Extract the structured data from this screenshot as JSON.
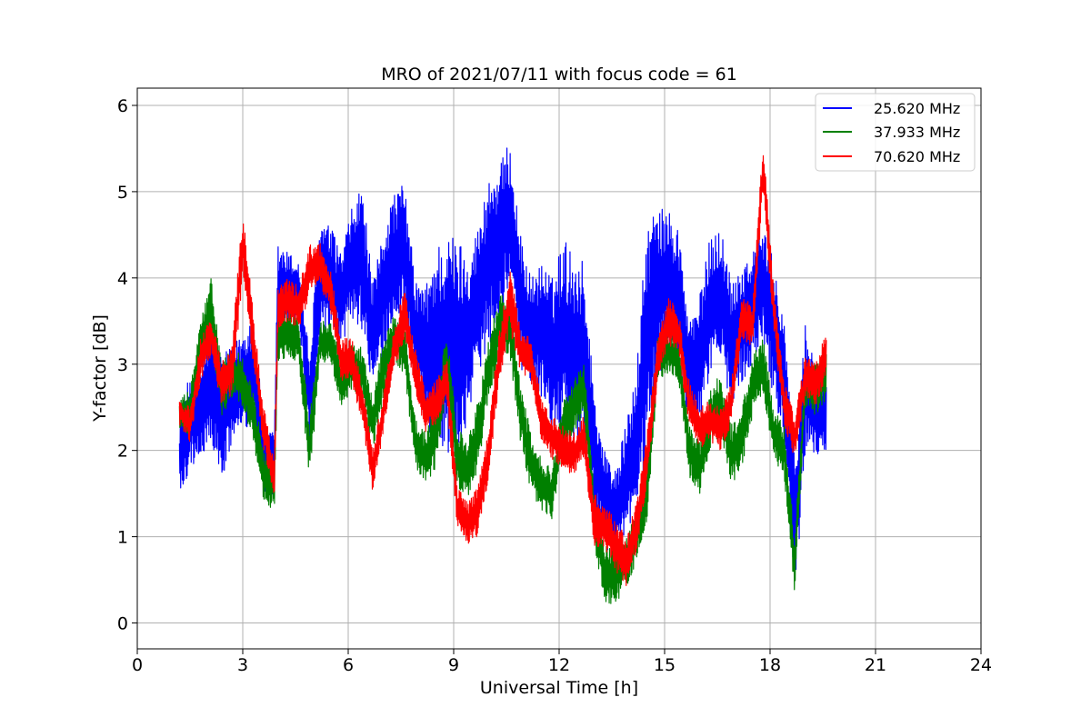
{
  "chart_data": {
    "type": "line",
    "title": "MRO of 2021/07/11 with focus code = 61",
    "xlabel": "Universal Time [h]",
    "ylabel": "Y-factor [dB]",
    "xlim": [
      0,
      24
    ],
    "ylim": [
      -0.3,
      6.2
    ],
    "xticks": [
      0,
      3,
      6,
      9,
      12,
      15,
      18,
      21,
      24
    ],
    "xtick_labels": [
      "0",
      "3",
      "6",
      "9",
      "12",
      "15",
      "18",
      "21",
      "24"
    ],
    "yticks": [
      0,
      1,
      2,
      3,
      4,
      5,
      6
    ],
    "ytick_labels": [
      "0",
      "1",
      "2",
      "3",
      "4",
      "5",
      "6"
    ],
    "grid": true,
    "legend_position": "top-right",
    "series": [
      {
        "name": "25.620 MHz",
        "color": "#0000ff",
        "x": [
          1.2,
          1.5,
          1.8,
          2.1,
          2.4,
          2.7,
          3.0,
          3.3,
          3.6,
          3.9,
          4.0,
          4.3,
          4.6,
          4.9,
          5.2,
          5.5,
          5.8,
          6.1,
          6.4,
          6.7,
          7.0,
          7.3,
          7.6,
          7.9,
          8.2,
          8.5,
          8.8,
          9.1,
          9.4,
          9.7,
          10.0,
          10.3,
          10.6,
          10.9,
          11.2,
          11.5,
          11.8,
          12.1,
          12.4,
          12.7,
          13.0,
          13.3,
          13.6,
          13.9,
          14.2,
          14.5,
          14.8,
          15.1,
          15.4,
          15.7,
          16.0,
          16.3,
          16.6,
          16.9,
          17.2,
          17.5,
          17.8,
          18.1,
          18.4,
          18.7,
          19.0,
          19.3,
          19.6
        ],
        "lower": [
          1.4,
          1.8,
          1.9,
          2.1,
          1.6,
          2.1,
          2.2,
          2.3,
          1.5,
          1.4,
          3.2,
          3.4,
          3.5,
          2.0,
          3.3,
          3.3,
          3.2,
          3.5,
          3.4,
          2.6,
          3.1,
          3.5,
          3.6,
          2.8,
          2.3,
          2.0,
          2.0,
          1.8,
          2.4,
          2.9,
          3.2,
          3.6,
          3.9,
          2.9,
          2.8,
          2.6,
          2.1,
          2.2,
          2.0,
          2.1,
          1.2,
          0.9,
          0.7,
          1.0,
          1.3,
          2.0,
          2.8,
          3.2,
          2.8,
          2.2,
          2.3,
          2.9,
          3.0,
          2.5,
          2.8,
          3.0,
          3.3,
          2.6,
          2.2,
          0.2,
          2.0,
          1.9,
          2.0
        ],
        "upper": [
          2.4,
          2.9,
          3.0,
          3.5,
          3.1,
          3.2,
          3.4,
          3.6,
          2.3,
          2.2,
          4.4,
          4.3,
          4.2,
          3.1,
          4.7,
          4.6,
          4.3,
          4.8,
          5.1,
          3.9,
          4.6,
          5.0,
          5.1,
          4.0,
          3.9,
          4.4,
          4.5,
          4.5,
          4.3,
          4.6,
          5.2,
          5.3,
          5.6,
          4.5,
          4.0,
          4.2,
          4.0,
          4.5,
          4.3,
          4.2,
          2.7,
          2.0,
          1.8,
          2.3,
          2.9,
          4.7,
          4.8,
          4.8,
          4.6,
          3.5,
          3.8,
          4.5,
          4.6,
          4.0,
          4.2,
          4.3,
          4.6,
          4.2,
          3.6,
          1.9,
          3.5,
          3.0,
          2.8
        ]
      },
      {
        "name": "37.933 MHz",
        "color": "#008000",
        "x": [
          1.2,
          1.5,
          1.8,
          2.1,
          2.4,
          2.7,
          3.0,
          3.3,
          3.6,
          3.9,
          4.0,
          4.3,
          4.6,
          4.9,
          5.2,
          5.5,
          5.8,
          6.1,
          6.4,
          6.7,
          7.0,
          7.3,
          7.6,
          7.9,
          8.2,
          8.5,
          8.8,
          9.1,
          9.4,
          9.7,
          10.0,
          10.3,
          10.6,
          10.9,
          11.2,
          11.5,
          11.8,
          12.1,
          12.4,
          12.7,
          13.0,
          13.3,
          13.6,
          13.9,
          14.2,
          14.5,
          14.8,
          15.1,
          15.4,
          15.7,
          16.0,
          16.3,
          16.6,
          16.9,
          17.2,
          17.5,
          17.8,
          18.1,
          18.4,
          18.7,
          19.0,
          19.3,
          19.6
        ],
        "lower": [
          2.2,
          2.2,
          3.0,
          3.3,
          2.4,
          2.6,
          2.5,
          2.1,
          1.4,
          1.3,
          3.0,
          3.1,
          3.0,
          1.6,
          3.0,
          3.0,
          2.5,
          2.7,
          2.6,
          2.0,
          2.6,
          3.0,
          2.9,
          1.8,
          1.6,
          1.8,
          2.7,
          1.6,
          1.4,
          1.8,
          2.6,
          3.1,
          3.1,
          2.1,
          1.5,
          1.3,
          1.2,
          2.0,
          2.2,
          2.4,
          0.9,
          0.2,
          0.2,
          0.4,
          0.7,
          1.2,
          2.8,
          2.9,
          2.8,
          1.7,
          1.5,
          2.0,
          2.2,
          1.6,
          1.8,
          2.4,
          2.7,
          1.9,
          1.7,
          0.3,
          2.5,
          2.4,
          2.6
        ],
        "upper": [
          2.6,
          2.7,
          3.5,
          4.0,
          3.0,
          3.2,
          3.1,
          2.7,
          2.0,
          1.9,
          3.6,
          3.7,
          3.5,
          2.4,
          3.5,
          3.5,
          3.1,
          3.3,
          3.2,
          2.6,
          3.3,
          3.6,
          3.5,
          2.4,
          2.2,
          2.6,
          3.4,
          2.3,
          2.1,
          2.6,
          3.3,
          3.8,
          3.8,
          2.8,
          2.2,
          1.9,
          1.8,
          2.6,
          2.8,
          3.1,
          1.5,
          0.9,
          0.9,
          1.0,
          1.3,
          1.9,
          3.3,
          3.4,
          3.3,
          2.3,
          2.1,
          2.7,
          2.9,
          2.3,
          2.5,
          3.1,
          3.3,
          2.5,
          2.3,
          1.0,
          3.0,
          3.0,
          3.2
        ]
      },
      {
        "name": "70.620 MHz",
        "color": "#ff0000",
        "x": [
          1.2,
          1.5,
          1.8,
          2.1,
          2.4,
          2.7,
          3.0,
          3.3,
          3.6,
          3.9,
          4.0,
          4.3,
          4.6,
          4.9,
          5.2,
          5.5,
          5.8,
          6.1,
          6.4,
          6.7,
          7.0,
          7.3,
          7.6,
          7.9,
          8.2,
          8.5,
          8.8,
          9.1,
          9.4,
          9.7,
          10.0,
          10.3,
          10.6,
          10.9,
          11.2,
          11.5,
          11.8,
          12.1,
          12.4,
          12.7,
          13.0,
          13.3,
          13.6,
          13.9,
          14.2,
          14.5,
          14.8,
          15.1,
          15.4,
          15.7,
          16.0,
          16.3,
          16.6,
          16.9,
          17.2,
          17.5,
          17.8,
          18.1,
          18.4,
          18.7,
          19.0,
          19.3,
          19.6
        ],
        "lower": [
          2.3,
          2.1,
          2.8,
          3.1,
          2.5,
          2.6,
          4.0,
          3.0,
          2.0,
          1.4,
          3.4,
          3.5,
          3.4,
          3.8,
          3.9,
          3.6,
          2.8,
          2.8,
          2.3,
          1.5,
          2.2,
          2.9,
          3.3,
          2.7,
          2.2,
          2.3,
          2.6,
          1.1,
          0.9,
          1.0,
          1.7,
          2.8,
          3.4,
          2.9,
          2.8,
          2.1,
          1.9,
          1.8,
          1.7,
          1.9,
          0.9,
          0.8,
          0.6,
          0.4,
          0.8,
          1.6,
          2.8,
          3.2,
          3.1,
          2.3,
          2.0,
          2.1,
          2.0,
          2.3,
          3.3,
          3.2,
          5.0,
          3.4,
          2.3,
          1.9,
          2.6,
          2.5,
          2.8
        ],
        "upper": [
          2.6,
          2.5,
          3.3,
          3.6,
          3.0,
          3.3,
          4.8,
          3.6,
          2.5,
          1.9,
          3.9,
          4.0,
          3.9,
          4.4,
          4.4,
          4.1,
          3.3,
          3.3,
          2.8,
          2.0,
          2.7,
          3.4,
          3.9,
          3.2,
          2.7,
          2.8,
          3.1,
          1.6,
          1.4,
          1.6,
          2.3,
          3.4,
          4.1,
          3.4,
          3.3,
          2.6,
          2.4,
          2.3,
          2.2,
          2.4,
          1.5,
          1.4,
          1.2,
          1.0,
          1.4,
          2.2,
          3.3,
          3.8,
          3.6,
          2.8,
          2.5,
          2.6,
          2.5,
          2.8,
          3.8,
          3.7,
          5.6,
          3.9,
          2.8,
          2.4,
          3.1,
          3.0,
          3.4
        ]
      }
    ]
  }
}
